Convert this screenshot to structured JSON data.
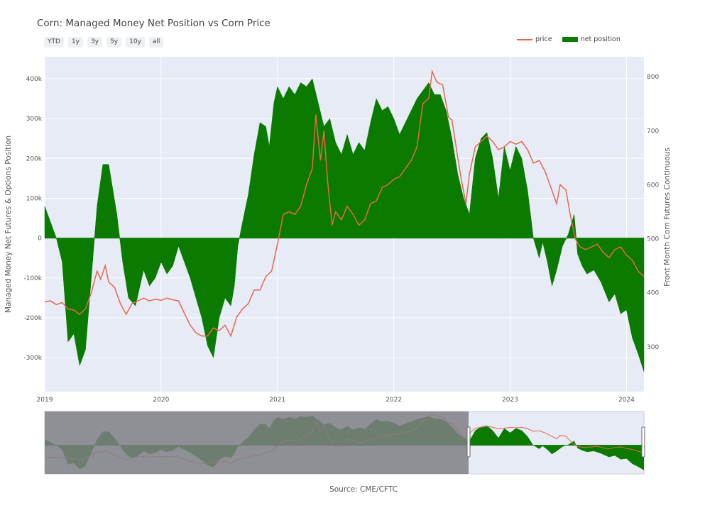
{
  "chart_data": {
    "type": "area",
    "title": "Corn: Managed Money Net Position vs Corn Price",
    "source": "Source: CME/CFTC",
    "range_buttons": [
      "YTD",
      "1y",
      "3y",
      "5y",
      "10y",
      "all"
    ],
    "legend": [
      "price",
      "net position"
    ],
    "colors": {
      "price": "#e8664f",
      "net_position": "#0a7a00",
      "plot_bg": "#e6ebf5",
      "grid": "#ffffff",
      "selector_mask": "#7f7f85"
    },
    "y_left": {
      "label": "Managed Money Net Futures & Options Position",
      "ticks": [
        -300000,
        -200000,
        -100000,
        0,
        100000,
        200000,
        300000,
        400000
      ],
      "tick_labels": [
        "-300k",
        "-200k",
        "-100k",
        "0",
        "100k",
        "200k",
        "300k",
        "400k"
      ],
      "range": [
        -385000,
        455000
      ]
    },
    "y_right": {
      "label": "Front Month Corn Futures Continuous",
      "ticks": [
        300,
        400,
        500,
        600,
        700,
        800
      ],
      "tick_labels": [
        "300",
        "400",
        "500",
        "600",
        "700",
        "800"
      ],
      "range": [
        217,
        837
      ]
    },
    "x_axis": {
      "ticks": [
        2019,
        2020,
        2021,
        2022,
        2023,
        2024
      ],
      "tick_labels": [
        "2019",
        "2020",
        "2021",
        "2022",
        "2023",
        "2024"
      ],
      "range": [
        2019.0,
        2024.15
      ]
    },
    "series": [
      {
        "name": "net position",
        "points": [
          [
            2019.0,
            80000
          ],
          [
            2019.05,
            40000
          ],
          [
            2019.1,
            0
          ],
          [
            2019.15,
            -60000
          ],
          [
            2019.2,
            -260000
          ],
          [
            2019.25,
            -240000
          ],
          [
            2019.3,
            -320000
          ],
          [
            2019.35,
            -280000
          ],
          [
            2019.4,
            -100000
          ],
          [
            2019.45,
            80000
          ],
          [
            2019.5,
            185000
          ],
          [
            2019.55,
            185000
          ],
          [
            2019.62,
            60000
          ],
          [
            2019.67,
            -60000
          ],
          [
            2019.72,
            -150000
          ],
          [
            2019.78,
            -170000
          ],
          [
            2019.85,
            -80000
          ],
          [
            2019.9,
            -120000
          ],
          [
            2019.95,
            -100000
          ],
          [
            2020.0,
            -60000
          ],
          [
            2020.05,
            -90000
          ],
          [
            2020.1,
            -70000
          ],
          [
            2020.15,
            -20000
          ],
          [
            2020.2,
            -60000
          ],
          [
            2020.25,
            -100000
          ],
          [
            2020.3,
            -150000
          ],
          [
            2020.35,
            -200000
          ],
          [
            2020.4,
            -270000
          ],
          [
            2020.45,
            -300000
          ],
          [
            2020.5,
            -200000
          ],
          [
            2020.55,
            -150000
          ],
          [
            2020.6,
            -170000
          ],
          [
            2020.63,
            -120000
          ],
          [
            2020.66,
            -20000
          ],
          [
            2020.7,
            40000
          ],
          [
            2020.75,
            110000
          ],
          [
            2020.8,
            210000
          ],
          [
            2020.85,
            290000
          ],
          [
            2020.9,
            280000
          ],
          [
            2020.93,
            230000
          ],
          [
            2020.97,
            340000
          ],
          [
            2021.0,
            380000
          ],
          [
            2021.05,
            350000
          ],
          [
            2021.1,
            380000
          ],
          [
            2021.15,
            360000
          ],
          [
            2021.2,
            390000
          ],
          [
            2021.25,
            380000
          ],
          [
            2021.3,
            400000
          ],
          [
            2021.35,
            340000
          ],
          [
            2021.4,
            280000
          ],
          [
            2021.45,
            300000
          ],
          [
            2021.5,
            240000
          ],
          [
            2021.55,
            210000
          ],
          [
            2021.6,
            260000
          ],
          [
            2021.65,
            210000
          ],
          [
            2021.7,
            240000
          ],
          [
            2021.75,
            220000
          ],
          [
            2021.8,
            290000
          ],
          [
            2021.85,
            350000
          ],
          [
            2021.9,
            320000
          ],
          [
            2021.95,
            330000
          ],
          [
            2022.0,
            300000
          ],
          [
            2022.05,
            260000
          ],
          [
            2022.1,
            290000
          ],
          [
            2022.15,
            320000
          ],
          [
            2022.2,
            350000
          ],
          [
            2022.25,
            370000
          ],
          [
            2022.3,
            390000
          ],
          [
            2022.35,
            360000
          ],
          [
            2022.4,
            360000
          ],
          [
            2022.45,
            320000
          ],
          [
            2022.5,
            250000
          ],
          [
            2022.55,
            160000
          ],
          [
            2022.6,
            100000
          ],
          [
            2022.65,
            60000
          ],
          [
            2022.7,
            200000
          ],
          [
            2022.75,
            250000
          ],
          [
            2022.8,
            265000
          ],
          [
            2022.85,
            200000
          ],
          [
            2022.9,
            100000
          ],
          [
            2022.95,
            230000
          ],
          [
            2023.0,
            170000
          ],
          [
            2023.05,
            230000
          ],
          [
            2023.1,
            200000
          ],
          [
            2023.15,
            120000
          ],
          [
            2023.2,
            0
          ],
          [
            2023.25,
            -50000
          ],
          [
            2023.28,
            -10000
          ],
          [
            2023.32,
            -60000
          ],
          [
            2023.36,
            -120000
          ],
          [
            2023.4,
            -80000
          ],
          [
            2023.45,
            -20000
          ],
          [
            2023.5,
            10000
          ],
          [
            2023.55,
            60000
          ],
          [
            2023.58,
            -40000
          ],
          [
            2023.62,
            -70000
          ],
          [
            2023.66,
            -90000
          ],
          [
            2023.72,
            -80000
          ],
          [
            2023.78,
            -110000
          ],
          [
            2023.85,
            -160000
          ],
          [
            2023.9,
            -140000
          ],
          [
            2023.95,
            -190000
          ],
          [
            2024.0,
            -180000
          ],
          [
            2024.05,
            -250000
          ],
          [
            2024.1,
            -290000
          ],
          [
            2024.15,
            -335000
          ]
        ]
      },
      {
        "name": "price",
        "points": [
          [
            2019.0,
            383
          ],
          [
            2019.05,
            385
          ],
          [
            2019.1,
            378
          ],
          [
            2019.15,
            382
          ],
          [
            2019.2,
            370
          ],
          [
            2019.25,
            368
          ],
          [
            2019.3,
            360
          ],
          [
            2019.35,
            370
          ],
          [
            2019.4,
            400
          ],
          [
            2019.45,
            440
          ],
          [
            2019.48,
            425
          ],
          [
            2019.52,
            450
          ],
          [
            2019.55,
            420
          ],
          [
            2019.6,
            410
          ],
          [
            2019.65,
            380
          ],
          [
            2019.7,
            360
          ],
          [
            2019.75,
            380
          ],
          [
            2019.8,
            385
          ],
          [
            2019.85,
            390
          ],
          [
            2019.9,
            385
          ],
          [
            2019.95,
            388
          ],
          [
            2020.0,
            386
          ],
          [
            2020.05,
            390
          ],
          [
            2020.1,
            387
          ],
          [
            2020.15,
            385
          ],
          [
            2020.2,
            362
          ],
          [
            2020.25,
            340
          ],
          [
            2020.3,
            326
          ],
          [
            2020.35,
            320
          ],
          [
            2020.4,
            320
          ],
          [
            2020.45,
            335
          ],
          [
            2020.5,
            330
          ],
          [
            2020.55,
            340
          ],
          [
            2020.6,
            320
          ],
          [
            2020.65,
            355
          ],
          [
            2020.7,
            370
          ],
          [
            2020.75,
            380
          ],
          [
            2020.8,
            405
          ],
          [
            2020.85,
            405
          ],
          [
            2020.9,
            430
          ],
          [
            2020.95,
            440
          ],
          [
            2021.0,
            490
          ],
          [
            2021.05,
            545
          ],
          [
            2021.1,
            550
          ],
          [
            2021.15,
            545
          ],
          [
            2021.2,
            560
          ],
          [
            2021.25,
            600
          ],
          [
            2021.3,
            630
          ],
          [
            2021.33,
            730
          ],
          [
            2021.37,
            645
          ],
          [
            2021.4,
            700
          ],
          [
            2021.43,
            610
          ],
          [
            2021.47,
            525
          ],
          [
            2021.5,
            550
          ],
          [
            2021.55,
            535
          ],
          [
            2021.6,
            560
          ],
          [
            2021.65,
            545
          ],
          [
            2021.7,
            525
          ],
          [
            2021.75,
            535
          ],
          [
            2021.8,
            565
          ],
          [
            2021.85,
            570
          ],
          [
            2021.9,
            595
          ],
          [
            2021.95,
            600
          ],
          [
            2022.0,
            610
          ],
          [
            2022.05,
            615
          ],
          [
            2022.1,
            630
          ],
          [
            2022.15,
            645
          ],
          [
            2022.2,
            670
          ],
          [
            2022.25,
            750
          ],
          [
            2022.3,
            760
          ],
          [
            2022.33,
            810
          ],
          [
            2022.37,
            790
          ],
          [
            2022.42,
            785
          ],
          [
            2022.47,
            725
          ],
          [
            2022.5,
            720
          ],
          [
            2022.55,
            650
          ],
          [
            2022.58,
            610
          ],
          [
            2022.62,
            565
          ],
          [
            2022.65,
            620
          ],
          [
            2022.7,
            670
          ],
          [
            2022.75,
            680
          ],
          [
            2022.8,
            690
          ],
          [
            2022.85,
            680
          ],
          [
            2022.9,
            665
          ],
          [
            2022.95,
            670
          ],
          [
            2023.0,
            680
          ],
          [
            2023.05,
            675
          ],
          [
            2023.1,
            680
          ],
          [
            2023.15,
            665
          ],
          [
            2023.2,
            640
          ],
          [
            2023.25,
            645
          ],
          [
            2023.3,
            625
          ],
          [
            2023.35,
            595
          ],
          [
            2023.4,
            565
          ],
          [
            2023.43,
            600
          ],
          [
            2023.48,
            590
          ],
          [
            2023.52,
            540
          ],
          [
            2023.56,
            500
          ],
          [
            2023.6,
            485
          ],
          [
            2023.65,
            480
          ],
          [
            2023.7,
            485
          ],
          [
            2023.75,
            490
          ],
          [
            2023.8,
            475
          ],
          [
            2023.85,
            465
          ],
          [
            2023.9,
            480
          ],
          [
            2023.95,
            485
          ],
          [
            2024.0,
            470
          ],
          [
            2024.05,
            460
          ],
          [
            2024.1,
            440
          ],
          [
            2024.15,
            430
          ]
        ]
      }
    ]
  }
}
